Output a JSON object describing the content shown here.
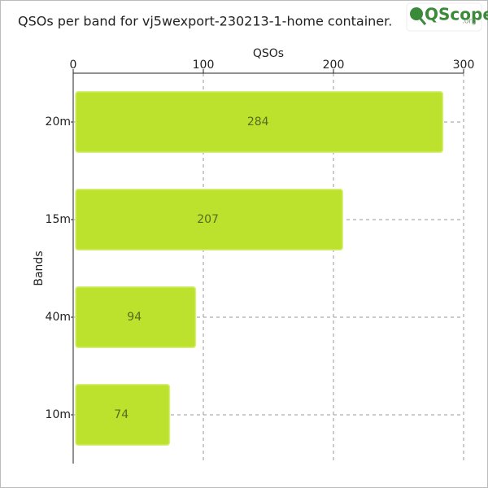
{
  "chart_data": {
    "type": "hbar",
    "title": "QSOs per band for vj5wexport-230213-1-home container.",
    "logo": "QScope",
    "logo_suffix": ".org",
    "x_label": "QSOs",
    "y_label": "Bands",
    "categories": [
      "20m",
      "15m",
      "40m",
      "10m"
    ],
    "values": [
      284,
      207,
      94,
      74
    ],
    "color": "#bde22e",
    "xlim": [
      0,
      300
    ],
    "xticks": [
      0,
      100,
      200,
      300
    ],
    "grid": true
  }
}
